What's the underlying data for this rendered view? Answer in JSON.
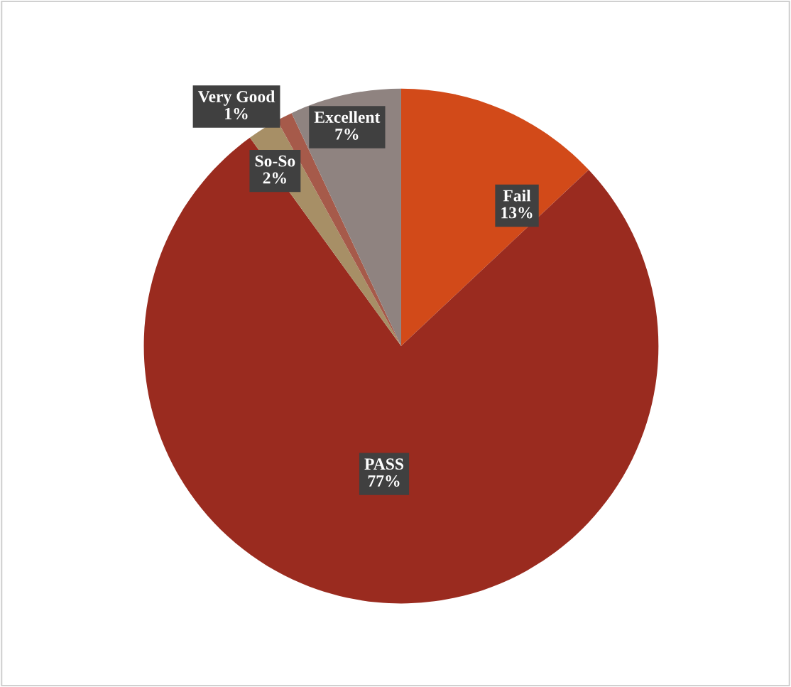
{
  "chart_data": {
    "type": "pie",
    "categories": [
      "Fail",
      "PASS",
      "So-So",
      "Very Good",
      "Excellent"
    ],
    "values": [
      13,
      77,
      2,
      1,
      7
    ],
    "value_labels": [
      "13%",
      "77%",
      "2%",
      "1%",
      "7%"
    ],
    "colors": [
      "#d24a19",
      "#9a2b1f",
      "#a78f66",
      "#a65a4a",
      "#8f8380"
    ],
    "legend": false
  }
}
